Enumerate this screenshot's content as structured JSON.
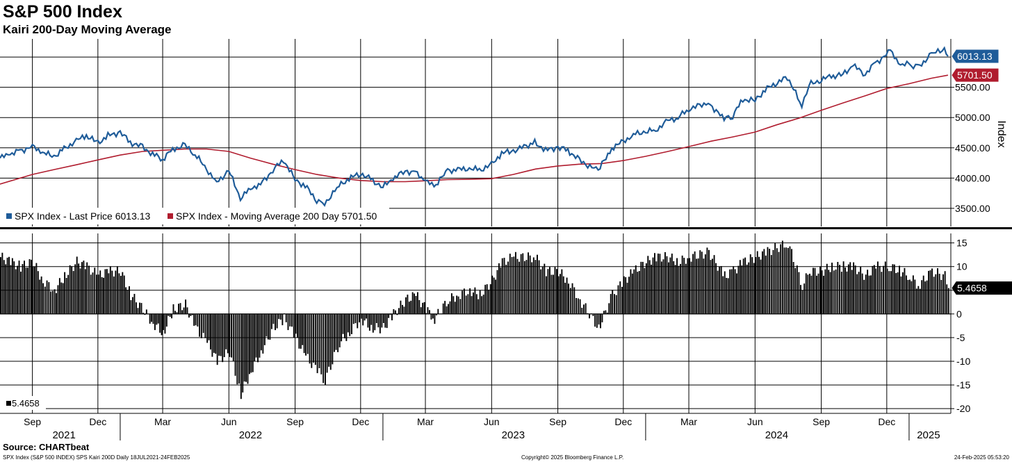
{
  "title": "S&P 500 Index",
  "subtitle": "Kairi 200-Day Moving Average",
  "footer": {
    "source": "Source: CHARTbeat",
    "left": "SPX Index (S&P 500 INDEX) SPS Kairi 200D  Daily 18JUL2021-24FEB2025",
    "middle": "Copyright© 2025 Bloomberg Finance L.P.",
    "right": "24-Feb-2025 05:53:20"
  },
  "chart_data": [
    {
      "type": "line",
      "axis_label": "Index",
      "ylim": [
        3200,
        6300
      ],
      "y_ticks": [
        3500,
        4000,
        4500,
        5000,
        5500
      ],
      "y_tick_labels": [
        "3500.00",
        "4000.00",
        "4500.00",
        "5000.00",
        "5500.00"
      ],
      "legend": [
        {
          "text": "SPX Index - Last Price 6013.13",
          "color": "#1f5c99"
        },
        {
          "text": "SPX Index - Moving Average 200 Day 5701.50",
          "color": "#b01c2e"
        }
      ],
      "last_price_tag": "6013.13",
      "ma_tag": "5701.50",
      "colors": {
        "price": "#1f5c99",
        "ma": "#b01c2e"
      },
      "series": [
        {
          "name": "SPX Index - Last Price",
          "x": [
            "2021-07-18",
            "2021-08-01",
            "2021-08-15",
            "2021-09-01",
            "2021-09-15",
            "2021-10-01",
            "2021-10-15",
            "2021-11-01",
            "2021-11-15",
            "2021-12-01",
            "2021-12-15",
            "2022-01-01",
            "2022-01-15",
            "2022-02-01",
            "2022-02-15",
            "2022-03-01",
            "2022-03-15",
            "2022-04-01",
            "2022-04-15",
            "2022-05-01",
            "2022-05-15",
            "2022-06-01",
            "2022-06-17",
            "2022-07-01",
            "2022-07-15",
            "2022-08-01",
            "2022-08-16",
            "2022-09-01",
            "2022-09-15",
            "2022-10-01",
            "2022-10-12",
            "2022-11-01",
            "2022-11-15",
            "2022-12-01",
            "2022-12-15",
            "2023-01-01",
            "2023-01-15",
            "2023-02-01",
            "2023-02-15",
            "2023-03-01",
            "2023-03-13",
            "2023-04-01",
            "2023-04-15",
            "2023-05-01",
            "2023-05-15",
            "2023-06-01",
            "2023-06-15",
            "2023-07-01",
            "2023-07-31",
            "2023-08-15",
            "2023-09-01",
            "2023-09-15",
            "2023-10-01",
            "2023-10-27",
            "2023-11-15",
            "2023-12-01",
            "2023-12-15",
            "2024-01-01",
            "2024-01-15",
            "2024-02-01",
            "2024-02-15",
            "2024-03-01",
            "2024-03-28",
            "2024-04-19",
            "2024-05-01",
            "2024-05-15",
            "2024-06-01",
            "2024-06-15",
            "2024-07-16",
            "2024-08-05",
            "2024-08-15",
            "2024-09-01",
            "2024-09-15",
            "2024-10-01",
            "2024-10-15",
            "2024-11-01",
            "2024-11-15",
            "2024-12-06",
            "2024-12-20",
            "2025-01-01",
            "2025-01-13",
            "2025-02-01",
            "2025-02-19",
            "2025-02-24"
          ],
          "values": [
            4330,
            4400,
            4450,
            4520,
            4420,
            4360,
            4480,
            4620,
            4700,
            4580,
            4700,
            4760,
            4590,
            4510,
            4400,
            4310,
            4480,
            4540,
            4390,
            4150,
            3930,
            4120,
            3670,
            3830,
            3900,
            4130,
            4300,
            3970,
            3870,
            3640,
            3580,
            3870,
            3990,
            4080,
            3980,
            3850,
            3990,
            4120,
            4090,
            3960,
            3860,
            4120,
            4140,
            4160,
            4130,
            4220,
            4410,
            4450,
            4590,
            4460,
            4510,
            4460,
            4290,
            4120,
            4500,
            4600,
            4720,
            4770,
            4790,
            4950,
            5000,
            5140,
            5250,
            4970,
            5030,
            5300,
            5280,
            5460,
            5670,
            5190,
            5540,
            5630,
            5680,
            5710,
            5860,
            5720,
            5900,
            6090,
            5870,
            5880,
            5830,
            6040,
            6140,
            6013
          ]
        },
        {
          "name": "SPX Index - Moving Average 200 Day",
          "x": [
            "2021-07-18",
            "2021-09-01",
            "2021-10-01",
            "2021-11-01",
            "2021-12-01",
            "2022-01-01",
            "2022-02-01",
            "2022-03-01",
            "2022-04-01",
            "2022-05-01",
            "2022-06-01",
            "2022-07-01",
            "2022-08-01",
            "2022-09-01",
            "2022-10-01",
            "2022-11-01",
            "2022-12-01",
            "2023-01-01",
            "2023-02-01",
            "2023-03-01",
            "2023-04-01",
            "2023-05-01",
            "2023-06-01",
            "2023-07-01",
            "2023-08-01",
            "2023-09-01",
            "2023-10-01",
            "2023-11-01",
            "2023-12-01",
            "2024-01-01",
            "2024-02-01",
            "2024-03-01",
            "2024-04-01",
            "2024-05-01",
            "2024-06-01",
            "2024-07-01",
            "2024-08-01",
            "2024-09-01",
            "2024-10-01",
            "2024-11-01",
            "2024-12-01",
            "2025-01-01",
            "2025-02-01",
            "2025-02-24"
          ],
          "values": [
            3900,
            4060,
            4140,
            4220,
            4300,
            4380,
            4440,
            4460,
            4480,
            4480,
            4440,
            4330,
            4230,
            4140,
            4060,
            4000,
            3960,
            3940,
            3940,
            3955,
            3975,
            3980,
            3990,
            4060,
            4150,
            4200,
            4230,
            4240,
            4290,
            4360,
            4440,
            4520,
            4610,
            4680,
            4760,
            4880,
            4990,
            5120,
            5240,
            5360,
            5480,
            5560,
            5650,
            5701
          ]
        }
      ]
    },
    {
      "type": "bar",
      "name": "SPS Kairi 200D",
      "ylim": [
        -21,
        17
      ],
      "y_ticks": [
        15,
        10,
        5,
        0,
        -5,
        -10,
        -15,
        -20
      ],
      "y_tick_labels": [
        "15",
        "10",
        "5",
        "0",
        "-5",
        "-10",
        "-15",
        "-20"
      ],
      "last_value_tag": "5.4658",
      "legend": [
        {
          "text": "5.4658",
          "color": "#000000"
        }
      ],
      "color": "#000000",
      "x": [
        "2021-07-18",
        "2021-08-01",
        "2021-08-15",
        "2021-09-01",
        "2021-09-15",
        "2021-10-01",
        "2021-10-15",
        "2021-11-01",
        "2021-11-15",
        "2021-12-01",
        "2021-12-15",
        "2022-01-01",
        "2022-01-15",
        "2022-02-01",
        "2022-02-15",
        "2022-03-01",
        "2022-03-15",
        "2022-04-01",
        "2022-04-15",
        "2022-05-01",
        "2022-05-15",
        "2022-06-01",
        "2022-06-17",
        "2022-07-01",
        "2022-07-15",
        "2022-08-01",
        "2022-08-16",
        "2022-09-01",
        "2022-09-15",
        "2022-10-01",
        "2022-10-12",
        "2022-11-01",
        "2022-11-15",
        "2022-12-01",
        "2022-12-15",
        "2023-01-01",
        "2023-01-15",
        "2023-02-01",
        "2023-02-15",
        "2023-03-01",
        "2023-03-13",
        "2023-04-01",
        "2023-04-15",
        "2023-05-01",
        "2023-05-15",
        "2023-06-01",
        "2023-06-15",
        "2023-07-01",
        "2023-07-31",
        "2023-08-15",
        "2023-09-01",
        "2023-09-15",
        "2023-10-01",
        "2023-10-27",
        "2023-11-15",
        "2023-12-01",
        "2023-12-15",
        "2024-01-01",
        "2024-01-15",
        "2024-02-01",
        "2024-02-15",
        "2024-03-01",
        "2024-03-28",
        "2024-04-19",
        "2024-05-01",
        "2024-05-15",
        "2024-06-01",
        "2024-06-15",
        "2024-07-16",
        "2024-08-05",
        "2024-08-15",
        "2024-09-01",
        "2024-09-15",
        "2024-10-01",
        "2024-10-15",
        "2024-11-01",
        "2024-11-15",
        "2024-12-06",
        "2024-12-20",
        "2025-01-01",
        "2025-01-13",
        "2025-02-01",
        "2025-02-19",
        "2025-02-24"
      ],
      "values": [
        12,
        11,
        10,
        11,
        7,
        5,
        8,
        11,
        10,
        8,
        9,
        9,
        4,
        1,
        -2,
        -4,
        1,
        2,
        -3,
        -6,
        -10,
        -8,
        -17,
        -12,
        -8,
        -3,
        -1,
        -5,
        -9,
        -12,
        -14,
        -6,
        -4,
        -1,
        -3,
        -3,
        0,
        3,
        4,
        1,
        -1,
        3,
        4,
        5,
        4,
        7,
        11,
        12,
        12,
        9,
        9,
        7,
        3,
        -3,
        4,
        7,
        9,
        11,
        12,
        12,
        11,
        12,
        13,
        8,
        9,
        11,
        12,
        13,
        15,
        6,
        9,
        9,
        10,
        10,
        10,
        8,
        10,
        10,
        9,
        8,
        6,
        9,
        8,
        5.4658
      ]
    }
  ],
  "x_axis": {
    "months": [
      {
        "label": "Sep",
        "date": "2021-09-01"
      },
      {
        "label": "Dec",
        "date": "2021-12-01"
      },
      {
        "label": "Mar",
        "date": "2022-03-01"
      },
      {
        "label": "Jun",
        "date": "2022-06-01"
      },
      {
        "label": "Sep",
        "date": "2022-09-01"
      },
      {
        "label": "Dec",
        "date": "2022-12-01"
      },
      {
        "label": "Mar",
        "date": "2023-03-01"
      },
      {
        "label": "Jun",
        "date": "2023-06-01"
      },
      {
        "label": "Sep",
        "date": "2023-09-01"
      },
      {
        "label": "Dec",
        "date": "2023-12-01"
      },
      {
        "label": "Mar",
        "date": "2024-03-01"
      },
      {
        "label": "Jun",
        "date": "2024-06-01"
      },
      {
        "label": "Sep",
        "date": "2024-09-01"
      },
      {
        "label": "Dec",
        "date": "2024-12-01"
      }
    ],
    "years": [
      {
        "label": "2021",
        "date": "2021-10-15"
      },
      {
        "label": "2022",
        "date": "2022-07-01"
      },
      {
        "label": "2023",
        "date": "2023-07-01"
      },
      {
        "label": "2024",
        "date": "2024-07-01"
      },
      {
        "label": "2025",
        "date": "2025-01-28"
      }
    ],
    "year_dividers": [
      "2022-01-01",
      "2023-01-01",
      "2024-01-01",
      "2025-01-01"
    ],
    "range": [
      "2021-07-18",
      "2025-02-28"
    ]
  }
}
